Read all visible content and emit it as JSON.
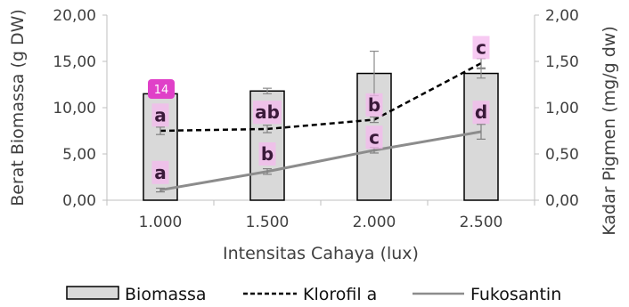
{
  "chart_data": {
    "type": "bar+line",
    "categories": [
      "1.000",
      "1.500",
      "2.000",
      "2.500"
    ],
    "xlabel": "Intensitas Cahaya (lux)",
    "ylabel_left": "Berat Biomassa (g DW)",
    "ylabel_right": "Kadar Pigmen (mg/g dw)",
    "ylim_left": [
      0,
      20
    ],
    "ylim_right": [
      0,
      2
    ],
    "yticks_left": [
      "0,00",
      "5,00",
      "10,00",
      "15,00",
      "20,00"
    ],
    "yticks_right": [
      "0,00",
      "0,50",
      "1,00",
      "1,50",
      "2,00"
    ],
    "grid": false,
    "legend_position": "bottom",
    "badge_label": "14",
    "series": [
      {
        "name": "Biomassa",
        "kind": "bar",
        "axis": "left",
        "values": [
          11.5,
          11.8,
          13.7,
          13.7
        ],
        "errors": [
          0.3,
          0.3,
          2.4,
          0.5
        ],
        "labels": [
          "a",
          "ab",
          "b",
          "d"
        ],
        "label_values": [
          9.2,
          9.5,
          10.3,
          9.5
        ],
        "color": "#d9d9d9"
      },
      {
        "name": "Klorofil a",
        "kind": "line",
        "style": "dashed",
        "axis": "right",
        "values": [
          0.75,
          0.77,
          0.87,
          1.48
        ],
        "errors": [
          0.04,
          0.04,
          0.03,
          0.05
        ],
        "labels": [
          "a",
          "b",
          "c",
          "c"
        ],
        "label_values": [
          0.3,
          0.5,
          0.68,
          1.65
        ],
        "color": "#000000"
      },
      {
        "name": "Fukosantin",
        "kind": "line",
        "style": "solid",
        "axis": "right",
        "values": [
          0.11,
          0.31,
          0.54,
          0.74
        ],
        "errors": [
          0.02,
          0.03,
          0.03,
          0.08
        ],
        "color": "#8c8c8c"
      }
    ]
  }
}
